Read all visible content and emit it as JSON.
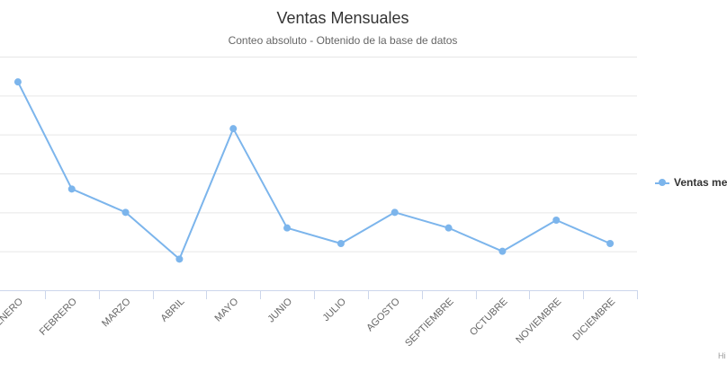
{
  "chart_data": {
    "type": "line",
    "title": "Ventas Mensuales",
    "subtitle": "Conteo absoluto - Obtenido de la base de datos",
    "categories": [
      "ENERO",
      "FEBRERO",
      "MARZO",
      "ABRIL",
      "MAYO",
      "JUNIO",
      "JULIO",
      "AGOSTO",
      "SEPTIEMBRE",
      "OCTUBRE",
      "NOVIEMBRE",
      "DICIEMBRE"
    ],
    "series": [
      {
        "name": "Ventas me",
        "values": [
          107,
          52,
          40,
          16,
          83,
          32,
          24,
          40,
          32,
          20,
          36,
          24
        ]
      }
    ],
    "ylim": [
      0,
      120
    ],
    "grid": true,
    "legend_position": "right",
    "colors": {
      "series": "#7cb5ec",
      "grid": "#e6e6e6",
      "axis": "#ccd6eb",
      "label": "#666666"
    },
    "credits": "Hi"
  }
}
